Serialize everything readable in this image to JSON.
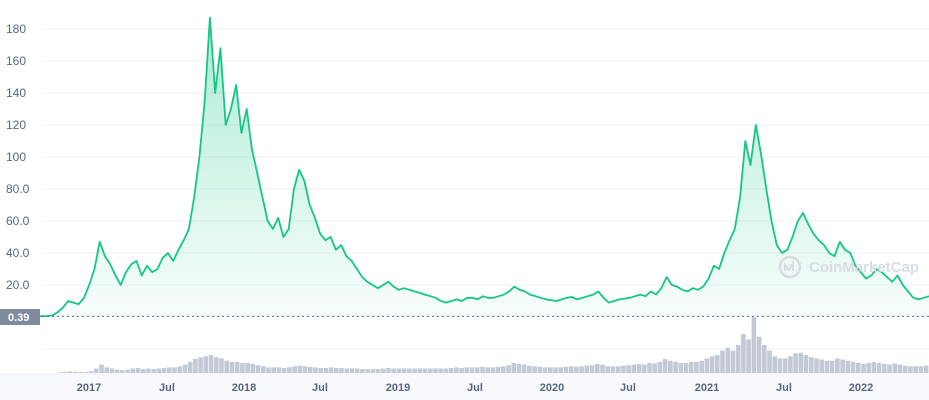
{
  "watermark": "CoinMarketCap",
  "current_price_label": "0.39",
  "colors": {
    "line": "#16c784",
    "volume": "#b4bccb",
    "badge": "#808a9d",
    "axis_text": "#58667e"
  },
  "chart_data": {
    "type": "line",
    "title": "",
    "xlabel": "",
    "ylabel": "",
    "ylim": [
      0,
      190
    ],
    "yticks": [
      "180",
      "160",
      "140",
      "120",
      "100",
      "80.0",
      "60.0",
      "40.0",
      "20.0"
    ],
    "xticks": [
      "2017",
      "Jul",
      "2018",
      "Jul",
      "2019",
      "Jul",
      "2020",
      "Jul",
      "2021",
      "Jul",
      "2022"
    ],
    "grid": true,
    "reference_line": 0.39,
    "series": [
      {
        "values": [
          0.39,
          0.39,
          0.4,
          0.4,
          0.41,
          0.42,
          0.43,
          0.45,
          0.5,
          0.6,
          1.0,
          3.0,
          6.0,
          10.0,
          9.0,
          8.0,
          12.0,
          20.0,
          30.0,
          47.0,
          38.0,
          33.0,
          26.0,
          20.0,
          28.0,
          33.0,
          35.0,
          26.0,
          32.0,
          28.0,
          30.0,
          37.0,
          40.0,
          35.0,
          42.0,
          48.0,
          55.0,
          75.0,
          100.0,
          135.0,
          187.0,
          140.0,
          168.0,
          120.0,
          130.0,
          145.0,
          115.0,
          130.0,
          105.0,
          90.0,
          75.0,
          60.0,
          55.0,
          62.0,
          50.0,
          55.0,
          80.0,
          92.0,
          85.0,
          70.0,
          62.0,
          52.0,
          48.0,
          50.0,
          42.0,
          45.0,
          38.0,
          35.0,
          30.0,
          25.0,
          22.0,
          20.0,
          18.0,
          20.0,
          22.0,
          19.0,
          17.0,
          18.0,
          17.0,
          16.0,
          15.0,
          14.0,
          13.0,
          12.0,
          10.0,
          9.0,
          10.0,
          11.0,
          10.0,
          12.0,
          12.0,
          11.0,
          13.0,
          12.0,
          12.0,
          13.0,
          14.0,
          16.0,
          19.0,
          17.0,
          16.0,
          14.0,
          13.0,
          12.0,
          11.0,
          10.5,
          10.0,
          11.0,
          12.0,
          12.5,
          11.0,
          12.0,
          13.0,
          14.0,
          16.0,
          12.0,
          9.0,
          10.0,
          11.0,
          11.5,
          12.0,
          13.0,
          14.0,
          13.0,
          16.0,
          14.0,
          18.0,
          25.0,
          20.0,
          19.0,
          17.0,
          16.0,
          18.0,
          17.0,
          19.0,
          24.0,
          32.0,
          30.0,
          40.0,
          48.0,
          55.0,
          75.0,
          110.0,
          95.0,
          120.0,
          102.0,
          80.0,
          60.0,
          45.0,
          40.0,
          42.0,
          50.0,
          60.0,
          65.0,
          58.0,
          52.0,
          48.0,
          45.0,
          40.0,
          38.0,
          47.0,
          42.0,
          40.0,
          32.0,
          28.0,
          24.0,
          26.0,
          30.0,
          28.0,
          25.0,
          22.0,
          26.0,
          20.0,
          16.0,
          12.0,
          11.0,
          12.0,
          13.0
        ]
      }
    ],
    "volume": [
      0,
      0,
      0,
      0,
      0,
      0,
      0,
      0,
      0,
      0,
      0,
      0.1,
      0.2,
      0.3,
      0.2,
      0.2,
      0.2,
      0.3,
      0.8,
      1.5,
      1.0,
      0.8,
      0.6,
      0.5,
      0.6,
      0.8,
      0.9,
      0.7,
      0.8,
      0.7,
      0.8,
      0.9,
      1.0,
      1.0,
      1.2,
      1.5,
      2.0,
      2.5,
      2.8,
      3.0,
      3.2,
      2.8,
      2.6,
      2.2,
      2.0,
      2.0,
      1.8,
      1.8,
      1.6,
      1.4,
      1.2,
      1.0,
      1.0,
      1.0,
      0.9,
      1.0,
      1.2,
      1.3,
      1.2,
      1.1,
      1.0,
      0.9,
      0.9,
      1.0,
      0.9,
      0.9,
      0.8,
      0.8,
      0.8,
      0.7,
      0.7,
      0.7,
      0.7,
      0.8,
      0.9,
      0.8,
      0.8,
      0.8,
      0.8,
      0.8,
      0.8,
      0.8,
      0.8,
      0.8,
      0.8,
      0.8,
      0.9,
      1.0,
      0.9,
      1.0,
      1.0,
      1.0,
      1.1,
      1.0,
      1.0,
      1.1,
      1.2,
      1.4,
      1.8,
      1.6,
      1.5,
      1.3,
      1.2,
      1.1,
      1.0,
      1.0,
      1.0,
      1.0,
      1.1,
      1.2,
      1.1,
      1.2,
      1.3,
      1.4,
      1.6,
      1.5,
      1.2,
      1.2,
      1.2,
      1.3,
      1.4,
      1.5,
      1.6,
      1.5,
      1.8,
      1.7,
      2.0,
      2.5,
      2.2,
      2.0,
      1.8,
      1.8,
      2.0,
      2.0,
      2.2,
      2.6,
      3.0,
      3.2,
      4.0,
      4.5,
      4.0,
      5.0,
      7.0,
      6.0,
      10.0,
      6.5,
      5.0,
      4.0,
      3.0,
      2.6,
      2.6,
      3.0,
      3.5,
      3.6,
      3.2,
      2.8,
      2.6,
      2.4,
      2.2,
      2.2,
      2.6,
      2.4,
      2.2,
      2.0,
      1.8,
      1.6,
      1.8,
      2.0,
      1.8,
      1.6,
      1.5,
      1.7,
      1.5,
      1.3,
      1.2,
      1.2,
      1.2,
      1.3
    ]
  }
}
